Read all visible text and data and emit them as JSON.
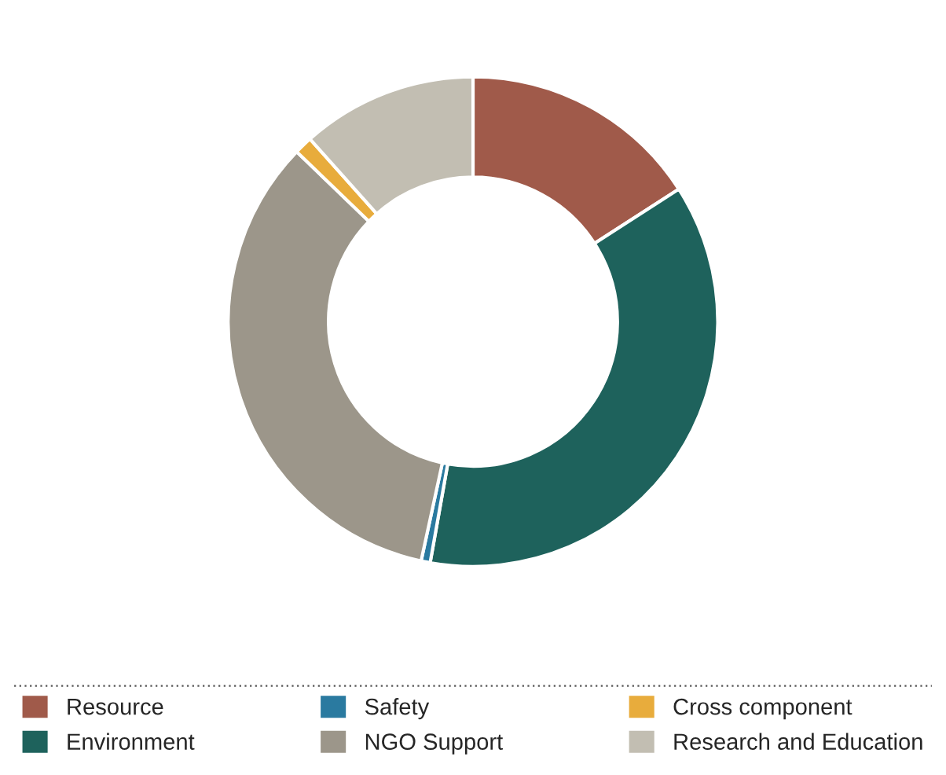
{
  "chart_data": {
    "type": "donut",
    "categories": [
      "Resource",
      "Environment",
      "Safety",
      "NGO Support",
      "Cross component",
      "Research and Education"
    ],
    "values": [
      15.9,
      36.9,
      0.6,
      33.8,
      1.2,
      11.6
    ],
    "colors": [
      "#a05a4a",
      "#1e625c",
      "#2a7aa0",
      "#9c968a",
      "#e8ac3c",
      "#c2beb2"
    ],
    "legend": "bottom"
  }
}
